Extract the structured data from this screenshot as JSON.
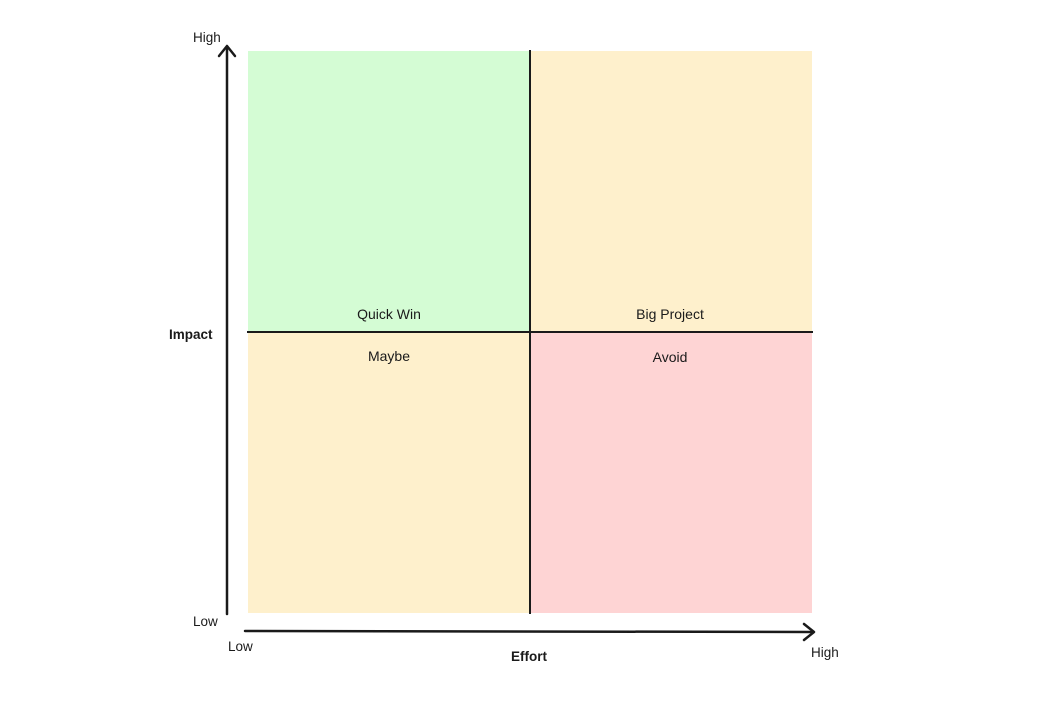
{
  "diagram": {
    "quadrants": {
      "top_left": {
        "label": "Quick Win",
        "color": "#d4fcd4"
      },
      "top_right": {
        "label": "Big Project",
        "color": "#fef0cc"
      },
      "bottom_left": {
        "label": "Maybe",
        "color": "#fef0cc"
      },
      "bottom_right": {
        "label": "Avoid",
        "color": "#fed4d4"
      }
    },
    "y_axis": {
      "title": "Impact",
      "high": "High",
      "low": "Low"
    },
    "x_axis": {
      "title": "Effort",
      "low": "Low",
      "high": "High"
    },
    "colors": {
      "line": "#1a1a1a"
    }
  }
}
